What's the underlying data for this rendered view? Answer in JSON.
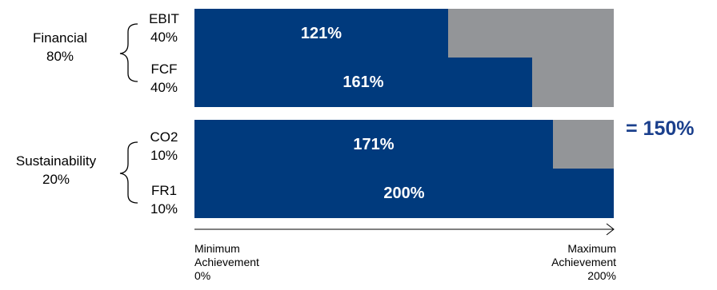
{
  "groups": [
    {
      "name": "Financial",
      "weight": "80%"
    },
    {
      "name": "Sustainability",
      "weight": "20%"
    }
  ],
  "total": "= 150%",
  "axis": {
    "min_label_line1": "Minimum",
    "min_label_line2": "Achievement",
    "min_label_line3": "0%",
    "max_label_line1": "Maximum",
    "max_label_line2": "Achievement",
    "max_label_line3": "200%"
  },
  "colors": {
    "achieved": "#003a7d",
    "remaining": "#939598",
    "total_text": "#1a3f8c"
  },
  "chart_data": {
    "type": "bar",
    "orientation": "horizontal",
    "stacked_to_max": true,
    "categories": [
      "EBIT",
      "FCF",
      "CO2",
      "FR1"
    ],
    "weights": [
      "40%",
      "40%",
      "10%",
      "10%"
    ],
    "groups": [
      "Financial",
      "Financial",
      "Sustainability",
      "Sustainability"
    ],
    "values": [
      121,
      161,
      171,
      200
    ],
    "value_labels": [
      "121%",
      "161%",
      "171%",
      "200%"
    ],
    "xlim": [
      0,
      200
    ]
  }
}
